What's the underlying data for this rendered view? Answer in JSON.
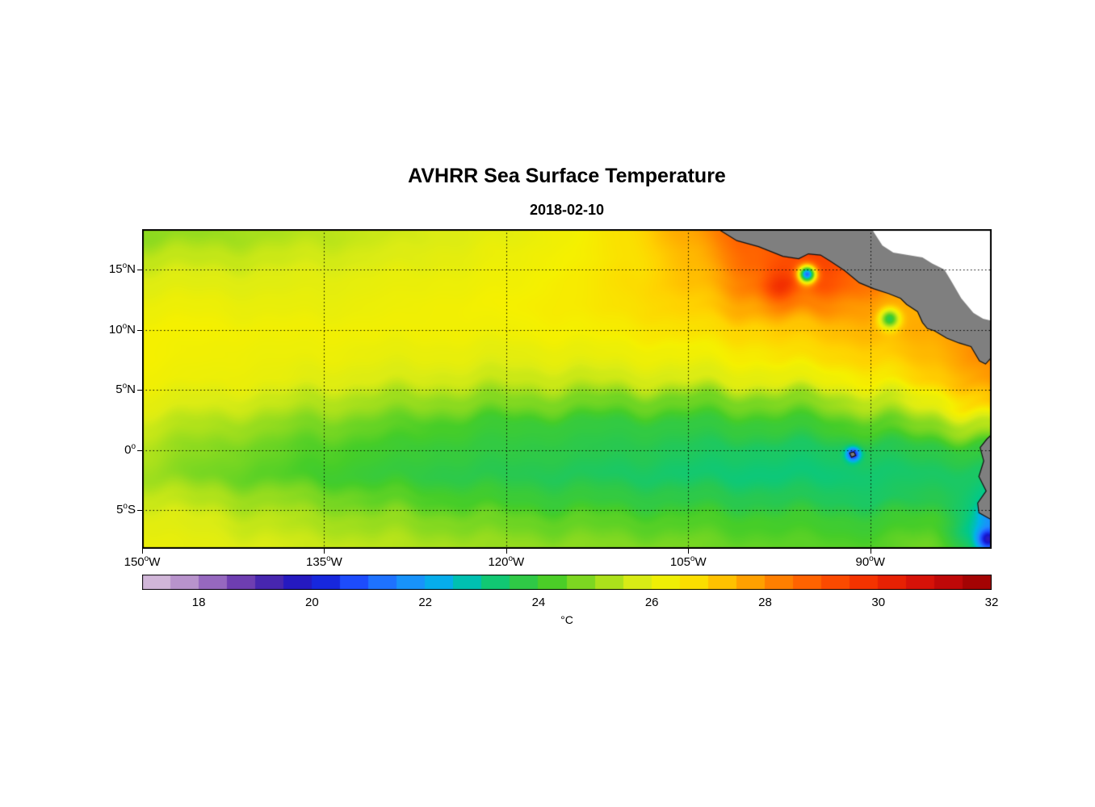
{
  "title": "AVHRR Sea Surface Temperature",
  "subtitle": "2018-02-10",
  "colorbar": {
    "unit_label": "°C",
    "min": 17,
    "max": 32,
    "step": 0.5,
    "ticks": [
      18,
      20,
      22,
      24,
      26,
      28,
      30,
      32
    ]
  },
  "chart_data": {
    "type": "heatmap",
    "degree_glyph": "o",
    "lon_range": [
      -150,
      -80.0
    ],
    "lat_range": [
      -8.2,
      18.35
    ],
    "xticks": [
      {
        "value": -150,
        "num": "150",
        "hemi": "W"
      },
      {
        "value": -135,
        "num": "135",
        "hemi": "W"
      },
      {
        "value": -120,
        "num": "120",
        "hemi": "W"
      },
      {
        "value": -105,
        "num": "105",
        "hemi": "W"
      },
      {
        "value": -90,
        "num": "90",
        "hemi": "W"
      }
    ],
    "yticks": [
      {
        "value": 15,
        "num": "15",
        "hemi": "N"
      },
      {
        "value": 10,
        "num": "10",
        "hemi": "N"
      },
      {
        "value": 5,
        "num": "5",
        "hemi": "N"
      },
      {
        "value": 0,
        "num": "0",
        "hemi": ""
      },
      {
        "value": -5,
        "num": "5",
        "hemi": "S"
      }
    ],
    "grid_lons": [
      -135,
      -120,
      -105,
      -90
    ],
    "grid_lats": [
      15,
      10,
      5,
      0,
      -5
    ],
    "land_color": "#7f7f7f",
    "coast_color": "#111111",
    "nodata_color": "#ffffff",
    "sst_grid": {
      "lons": [
        -150,
        -145,
        -140,
        -135,
        -130,
        -125,
        -120,
        -115,
        -110,
        -105,
        -100,
        -95,
        -90,
        -85,
        -80
      ],
      "lats": [
        -8,
        -6,
        -4,
        -2,
        0,
        2,
        4,
        6,
        8,
        10,
        12,
        14,
        16,
        18
      ],
      "values": [
        [
          26.2,
          26.0,
          25.8,
          25.6,
          25.4,
          25.2,
          25.0,
          24.9,
          24.8,
          24.7,
          24.5,
          24.4,
          24.3,
          24.6,
          23.2
        ],
        [
          26.0,
          25.8,
          25.5,
          25.2,
          25.0,
          24.8,
          24.6,
          24.5,
          24.4,
          24.3,
          24.2,
          24.1,
          24.0,
          24.2,
          22.6
        ],
        [
          25.6,
          25.3,
          25.0,
          24.7,
          24.4,
          24.2,
          24.0,
          23.9,
          23.8,
          23.7,
          23.6,
          23.5,
          23.4,
          23.6,
          23.0
        ],
        [
          25.1,
          24.7,
          24.4,
          24.1,
          23.9,
          23.7,
          23.6,
          23.5,
          23.4,
          23.3,
          23.2,
          23.2,
          23.3,
          23.4,
          23.4
        ],
        [
          25.3,
          24.9,
          24.6,
          24.3,
          24.1,
          23.9,
          23.8,
          23.7,
          23.6,
          23.5,
          23.4,
          23.4,
          23.5,
          23.7,
          23.9
        ],
        [
          25.6,
          25.3,
          25.0,
          24.7,
          24.5,
          24.2,
          24.0,
          23.9,
          23.8,
          23.8,
          23.9,
          24.0,
          24.3,
          24.8,
          25.4
        ],
        [
          26.0,
          25.8,
          25.6,
          25.3,
          25.1,
          24.9,
          24.8,
          24.7,
          24.6,
          24.6,
          24.7,
          24.9,
          25.4,
          26.1,
          27.2
        ],
        [
          26.3,
          26.2,
          26.1,
          25.9,
          25.8,
          25.7,
          25.6,
          25.6,
          25.7,
          25.8,
          26.0,
          26.2,
          26.5,
          27.1,
          27.9
        ],
        [
          26.4,
          26.3,
          26.2,
          26.2,
          26.1,
          26.1,
          26.0,
          26.1,
          26.2,
          26.3,
          26.5,
          26.8,
          27.0,
          27.4,
          28.2
        ],
        [
          26.4,
          26.4,
          26.3,
          26.3,
          26.3,
          26.3,
          26.3,
          26.4,
          26.5,
          26.7,
          26.9,
          27.2,
          27.4,
          27.6,
          28.0
        ],
        [
          26.2,
          26.2,
          26.1,
          26.1,
          26.2,
          26.3,
          26.4,
          26.5,
          26.7,
          27.0,
          27.6,
          28.2,
          27.8,
          27.5,
          27.6
        ],
        [
          25.9,
          25.9,
          25.9,
          26.0,
          26.1,
          26.2,
          26.3,
          26.5,
          26.8,
          27.3,
          28.3,
          29.2,
          28.4,
          27.6,
          27.6
        ],
        [
          25.5,
          25.5,
          25.6,
          25.7,
          25.8,
          26.0,
          26.2,
          26.4,
          26.7,
          27.4,
          28.7,
          29.4,
          28.8,
          28.0,
          27.6
        ],
        [
          24.9,
          25.0,
          25.2,
          25.4,
          25.6,
          25.8,
          26.0,
          26.3,
          26.7,
          27.6,
          28.8,
          29.0,
          28.5,
          28.0,
          27.6
        ]
      ]
    },
    "anomaly_spots": [
      {
        "name": "tehuantepec-cold",
        "lon": -95.2,
        "lat": 14.6,
        "delta": -8.0,
        "radius": 0.7
      },
      {
        "name": "papagayo-cold",
        "lon": -88.4,
        "lat": 10.9,
        "delta": -3.8,
        "radius": 0.8
      },
      {
        "name": "galapagos-cold",
        "lon": -91.4,
        "lat": -0.35,
        "delta": -3.5,
        "radius": 0.55
      },
      {
        "name": "peru-coast-cold",
        "lon": -80.3,
        "lat": -7.4,
        "delta": -3.5,
        "radius": 0.9
      },
      {
        "name": "peru-coast-cool",
        "lon": -80.0,
        "lat": -5.2,
        "delta": -1.2,
        "radius": 1.0
      },
      {
        "name": "mexico-warm",
        "lon": -97.5,
        "lat": 13.5,
        "delta": 1.2,
        "radius": 1.5
      }
    ],
    "colormap_stops": [
      [
        17.0,
        "#dcc6e0"
      ],
      [
        17.6,
        "#c2a0d0"
      ],
      [
        18.2,
        "#9a6cc0"
      ],
      [
        18.8,
        "#6a3ab0"
      ],
      [
        19.4,
        "#3c1fae"
      ],
      [
        20.0,
        "#1414cd"
      ],
      [
        20.8,
        "#1e50ff"
      ],
      [
        21.6,
        "#1e8cff"
      ],
      [
        22.4,
        "#00b4e6"
      ],
      [
        23.0,
        "#00c88c"
      ],
      [
        23.6,
        "#28c850"
      ],
      [
        24.2,
        "#46cd28"
      ],
      [
        25.0,
        "#96dc1e"
      ],
      [
        25.8,
        "#dcec14"
      ],
      [
        26.4,
        "#f5f000"
      ],
      [
        27.0,
        "#ffd200"
      ],
      [
        27.6,
        "#ffaa00"
      ],
      [
        28.2,
        "#ff8200"
      ],
      [
        29.0,
        "#ff5500"
      ],
      [
        30.0,
        "#f02800"
      ],
      [
        31.0,
        "#cd0a0a"
      ],
      [
        32.0,
        "#960000"
      ]
    ],
    "land_polygons": [
      {
        "name": "central-america",
        "points": [
          [
            -102.6,
            18.4
          ],
          [
            -101.0,
            17.4
          ],
          [
            -99.2,
            16.9
          ],
          [
            -97.2,
            16.1
          ],
          [
            -95.9,
            15.9
          ],
          [
            -95.1,
            16.3
          ],
          [
            -94.1,
            16.2
          ],
          [
            -93.3,
            15.7
          ],
          [
            -92.1,
            14.9
          ],
          [
            -90.9,
            13.9
          ],
          [
            -89.7,
            13.4
          ],
          [
            -88.5,
            13.0
          ],
          [
            -87.5,
            12.6
          ],
          [
            -87.0,
            12.1
          ],
          [
            -86.1,
            11.5
          ],
          [
            -85.7,
            10.6
          ],
          [
            -85.3,
            10.1
          ],
          [
            -84.7,
            9.9
          ],
          [
            -83.7,
            9.3
          ],
          [
            -82.7,
            8.9
          ],
          [
            -81.7,
            8.6
          ],
          [
            -81.0,
            7.4
          ],
          [
            -80.5,
            7.15
          ],
          [
            -80.1,
            7.6
          ],
          [
            -79.8,
            7.8
          ],
          [
            -79.8,
            18.4
          ]
        ]
      },
      {
        "name": "south-america",
        "points": [
          [
            -79.8,
            1.5
          ],
          [
            -80.4,
            0.9
          ],
          [
            -80.95,
            0.2
          ],
          [
            -80.65,
            -0.9
          ],
          [
            -81.05,
            -2.2
          ],
          [
            -80.45,
            -3.4
          ],
          [
            -81.15,
            -4.4
          ],
          [
            -81.05,
            -5.2
          ],
          [
            -80.35,
            -5.6
          ],
          [
            -79.8,
            -5.9
          ]
        ]
      },
      {
        "name": "galapagos-island",
        "points": [
          [
            -91.7,
            -0.25
          ],
          [
            -91.35,
            -0.15
          ],
          [
            -91.2,
            -0.45
          ],
          [
            -91.55,
            -0.6
          ]
        ]
      }
    ],
    "nodata_polygons": [
      {
        "name": "caribbean-nodata",
        "points": [
          [
            -89.9,
            18.4
          ],
          [
            -89.0,
            17.0
          ],
          [
            -88.1,
            16.4
          ],
          [
            -86.9,
            16.2
          ],
          [
            -85.7,
            16.0
          ],
          [
            -84.9,
            15.5
          ],
          [
            -83.9,
            15.0
          ],
          [
            -83.3,
            14.0
          ],
          [
            -82.5,
            12.6
          ],
          [
            -81.5,
            11.4
          ],
          [
            -80.7,
            10.9
          ],
          [
            -79.8,
            10.7
          ],
          [
            -79.8,
            18.4
          ]
        ]
      }
    ]
  }
}
